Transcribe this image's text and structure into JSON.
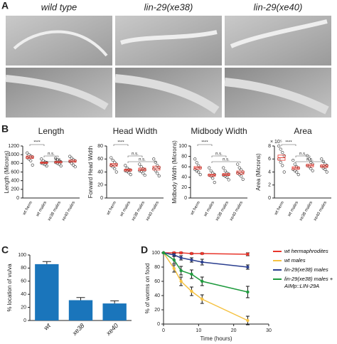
{
  "panel_labels": [
    "A",
    "B",
    "C",
    "D"
  ],
  "image_titles": [
    "wild type",
    "lin-29(xe38)",
    "lin-29(xe40)"
  ],
  "chart_data": [
    {
      "type": "strip",
      "title": "Length",
      "ylabel": "Length (Microns)",
      "categories": [
        "wt herm",
        "wt males",
        "xe38 males",
        "xe40 males"
      ],
      "points": [
        [
          1040,
          1000,
          970,
          950,
          930,
          900,
          860,
          760
        ],
        [
          900,
          860,
          830,
          820,
          810,
          790,
          770,
          740
        ],
        [
          920,
          880,
          850,
          830,
          820,
          800,
          780,
          740
        ],
        [
          960,
          920,
          880,
          860,
          840,
          800,
          760,
          720
        ]
      ],
      "means": [
        940,
        815,
        830,
        850
      ],
      "errors": [
        30,
        15,
        20,
        25
      ],
      "ylim": [
        0,
        1200
      ],
      "yticks": [
        0,
        200,
        400,
        600,
        800,
        1000,
        1200
      ],
      "comparisons": [
        {
          "pair": [
            0,
            1
          ],
          "label": "****"
        },
        {
          "pair": [
            1,
            2
          ],
          "label": "n.s."
        },
        {
          "pair": [
            1,
            3
          ],
          "label": "n.s."
        }
      ],
      "color": "#e8352b"
    },
    {
      "type": "strip",
      "title": "Head Width",
      "ylabel": "Forward Head Width",
      "categories": [
        "wt herm",
        "wt males",
        "xe38 males",
        "xe40 males"
      ],
      "points": [
        [
          62,
          58,
          55,
          52,
          50,
          48,
          45,
          40
        ],
        [
          50,
          46,
          44,
          43,
          42,
          41,
          39,
          36
        ],
        [
          52,
          48,
          45,
          43,
          42,
          41,
          38,
          35
        ],
        [
          60,
          55,
          50,
          47,
          45,
          42,
          38,
          34
        ]
      ],
      "means": [
        51,
        43,
        44,
        46
      ],
      "errors": [
        2,
        1.5,
        2,
        3
      ],
      "ylim": [
        0,
        80
      ],
      "yticks": [
        0,
        20,
        40,
        60,
        80
      ],
      "comparisons": [
        {
          "pair": [
            0,
            1
          ],
          "label": "****"
        },
        {
          "pair": [
            1,
            2
          ],
          "label": "n.s."
        },
        {
          "pair": [
            1,
            3
          ],
          "label": "n.s."
        }
      ],
      "color": "#e8352b"
    },
    {
      "type": "strip",
      "title": "Midbody Width",
      "ylabel": "Midbody Width (Microns)",
      "categories": [
        "wt herm",
        "wt males",
        "xe38 males",
        "xe40 males"
      ],
      "points": [
        [
          75,
          68,
          62,
          58,
          55,
          52,
          50,
          45
        ],
        [
          58,
          52,
          48,
          45,
          44,
          42,
          38,
          30
        ],
        [
          58,
          52,
          48,
          46,
          44,
          42,
          40,
          35
        ],
        [
          65,
          58,
          54,
          50,
          48,
          45,
          42,
          36
        ]
      ],
      "means": [
        58,
        44,
        45,
        49
      ],
      "errors": [
        2.5,
        2,
        2,
        3
      ],
      "ylim": [
        0,
        100
      ],
      "yticks": [
        0,
        20,
        40,
        60,
        80,
        100
      ],
      "comparisons": [
        {
          "pair": [
            0,
            1
          ],
          "label": "****"
        },
        {
          "pair": [
            1,
            2
          ],
          "label": "n.s."
        },
        {
          "pair": [
            1,
            3
          ],
          "label": "n.s."
        }
      ],
      "color": "#e8352b"
    },
    {
      "type": "strip",
      "title": "Area",
      "ylabel": "Area (Microns)",
      "axis_multiplier": "× 10⁵",
      "categories": [
        "wt herm",
        "wt males",
        "xe38 males",
        "xe40 males"
      ],
      "points": [
        [
          8,
          7.5,
          7,
          6.5,
          6,
          5.5,
          5,
          4
        ],
        [
          5.8,
          5.2,
          4.8,
          4.6,
          4.4,
          4.2,
          4,
          3.6
        ],
        [
          6.5,
          6,
          5.5,
          5.2,
          5,
          4.8,
          4.5,
          4.2
        ],
        [
          6,
          5.6,
          5.2,
          5,
          4.9,
          4.6,
          4.4,
          4
        ]
      ],
      "means": [
        6.2,
        4.6,
        5,
        4.9
      ],
      "errors": [
        0.4,
        0.2,
        0.2,
        0.2
      ],
      "ylim": [
        0,
        8
      ],
      "yticks": [
        0,
        2,
        4,
        6,
        8
      ],
      "comparisons": [
        {
          "pair": [
            0,
            1
          ],
          "label": "****"
        },
        {
          "pair": [
            1,
            2
          ],
          "label": "n.s."
        },
        {
          "pair": [
            1,
            3
          ],
          "label": "n.s."
        }
      ],
      "color": "#e8352b"
    },
    {
      "type": "bar",
      "ylabel": "% location of vu/va",
      "categories": [
        "wt",
        "xe38",
        "xe40"
      ],
      "values": [
        86,
        31,
        26
      ],
      "errors": [
        4,
        4,
        4
      ],
      "ylim": [
        0,
        100
      ],
      "yticks": [
        0,
        20,
        40,
        60,
        80,
        100
      ],
      "color": "#1a75bb"
    },
    {
      "type": "line",
      "xlabel": "Time (hours)",
      "ylabel": "% of worms on food",
      "x": [
        0,
        3,
        5,
        8,
        11,
        24
      ],
      "series": [
        {
          "name": "wt hermaphrodites",
          "color": "#e8352b",
          "values": [
            100,
            100,
            100,
            99,
            99,
            98
          ],
          "errors": [
            0,
            1,
            1,
            1,
            1,
            2
          ]
        },
        {
          "name": "wt males",
          "color": "#f5c242",
          "values": [
            100,
            78,
            60,
            46,
            35,
            5
          ],
          "errors": [
            0,
            5,
            6,
            6,
            6,
            6
          ]
        },
        {
          "name": "lin-29(xe38) males",
          "color": "#2a3e8f",
          "values": [
            100,
            97,
            93,
            90,
            87,
            80
          ],
          "errors": [
            0,
            2,
            3,
            3,
            4,
            3
          ]
        },
        {
          "name": "lin-29(xe38) males + AIMp::LIN-29A",
          "color": "#1e9a3d",
          "values": [
            100,
            90,
            75,
            70,
            60,
            45
          ],
          "errors": [
            0,
            5,
            6,
            6,
            6,
            8
          ]
        }
      ],
      "xlim": [
        0,
        30
      ],
      "xticks": [
        0,
        10,
        20,
        30
      ],
      "ylim": [
        0,
        100
      ],
      "yticks": [
        0,
        20,
        40,
        60,
        80,
        100
      ]
    }
  ]
}
